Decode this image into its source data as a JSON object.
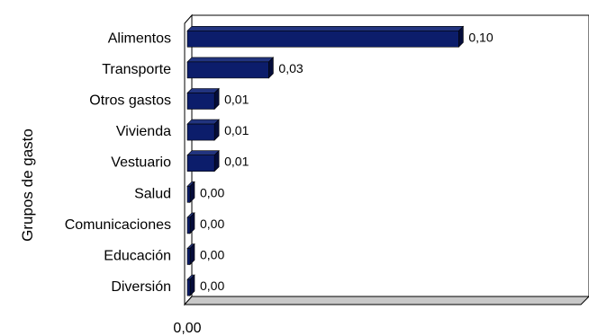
{
  "chart_data": {
    "type": "bar",
    "orientation": "horizontal",
    "categories": [
      "Alimentos",
      "Transporte",
      "Otros gastos",
      "Vivienda",
      "Vestuario",
      "Salud",
      "Comunicaciones",
      "Educación",
      "Diversión"
    ],
    "values": [
      0.1,
      0.03,
      0.01,
      0.01,
      0.01,
      0.0,
      0.0,
      0.0,
      0.0
    ],
    "value_labels": [
      "0,10",
      "0,03",
      "0,01",
      "0,01",
      "0,01",
      "0,00",
      "0,00",
      "0,00",
      "0,00"
    ],
    "ylabel": "Grupos de gasto",
    "xlabel": "",
    "x_tick_labels": [
      "0,00"
    ],
    "xlim": [
      0,
      0.145
    ],
    "grid": false,
    "legend": "none",
    "style": "3d",
    "colors": {
      "bar_front": "#0c1d6b",
      "bar_top": "#22347f",
      "bar_side": "#050d3a",
      "plot_back": "#ffffff",
      "floor": "#c8c8c8"
    }
  }
}
